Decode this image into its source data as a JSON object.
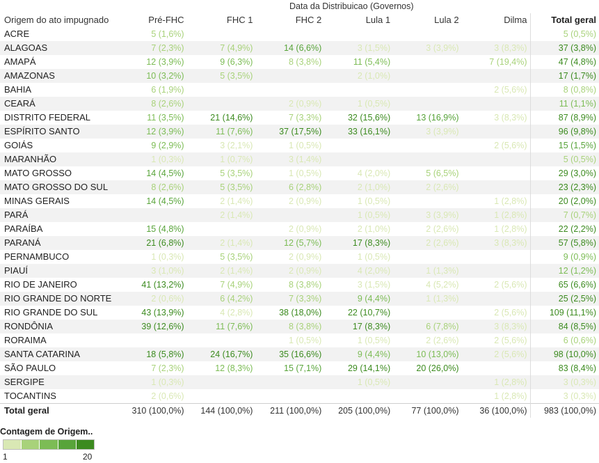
{
  "chart_data": {
    "type": "table",
    "supertitle": "Data da Distribuicao (Governos)",
    "row_header": "Origem do ato impugnado",
    "columns": [
      "Pré-FHC",
      "FHC 1",
      "FHC 2",
      "Lula 1",
      "Lula 2",
      "Dilma",
      "Total geral"
    ],
    "rows": [
      {
        "state": "ACRE",
        "cells": [
          "5 (1,6%)",
          "",
          "",
          "",
          "",
          "",
          "5 (0,5%)"
        ],
        "counts": [
          5,
          null,
          null,
          null,
          null,
          null,
          5
        ]
      },
      {
        "state": "ALAGOAS",
        "cells": [
          "7 (2,3%)",
          "7 (4,9%)",
          "14 (6,6%)",
          "3 (1,5%)",
          "3 (3,9%)",
          "3 (8,3%)",
          "37 (3,8%)"
        ],
        "counts": [
          7,
          7,
          14,
          3,
          3,
          3,
          37
        ]
      },
      {
        "state": "AMAPÁ",
        "cells": [
          "12 (3,9%)",
          "9 (6,3%)",
          "8 (3,8%)",
          "11 (5,4%)",
          "",
          "7 (19,4%)",
          "47 (4,8%)"
        ],
        "counts": [
          12,
          9,
          8,
          11,
          null,
          7,
          47
        ]
      },
      {
        "state": "AMAZONAS",
        "cells": [
          "10 (3,2%)",
          "5 (3,5%)",
          "",
          "2 (1,0%)",
          "",
          "",
          "17 (1,7%)"
        ],
        "counts": [
          10,
          5,
          null,
          2,
          null,
          null,
          17
        ]
      },
      {
        "state": "BAHIA",
        "cells": [
          "6 (1,9%)",
          "",
          "",
          "",
          "",
          "2 (5,6%)",
          "8 (0,8%)"
        ],
        "counts": [
          6,
          null,
          null,
          null,
          null,
          2,
          8
        ]
      },
      {
        "state": "CEARÁ",
        "cells": [
          "8 (2,6%)",
          "",
          "2 (0,9%)",
          "1 (0,5%)",
          "",
          "",
          "11 (1,1%)"
        ],
        "counts": [
          8,
          null,
          2,
          1,
          null,
          null,
          11
        ]
      },
      {
        "state": "DISTRITO FEDERAL",
        "cells": [
          "11 (3,5%)",
          "21 (14,6%)",
          "7 (3,3%)",
          "32 (15,6%)",
          "13 (16,9%)",
          "3 (8,3%)",
          "87 (8,9%)"
        ],
        "counts": [
          11,
          21,
          7,
          32,
          13,
          3,
          87
        ]
      },
      {
        "state": "ESPÍRITO SANTO",
        "cells": [
          "12 (3,9%)",
          "11 (7,6%)",
          "37 (17,5%)",
          "33 (16,1%)",
          "3 (3,9%)",
          "",
          "96 (9,8%)"
        ],
        "counts": [
          12,
          11,
          37,
          33,
          3,
          null,
          96
        ]
      },
      {
        "state": "GOIÁS",
        "cells": [
          "9 (2,9%)",
          "3 (2,1%)",
          "1 (0,5%)",
          "",
          "",
          "2 (5,6%)",
          "15 (1,5%)"
        ],
        "counts": [
          9,
          3,
          1,
          null,
          null,
          2,
          15
        ]
      },
      {
        "state": "MARANHÃO",
        "cells": [
          "1 (0,3%)",
          "1 (0,7%)",
          "3 (1,4%)",
          "",
          "",
          "",
          "5 (0,5%)"
        ],
        "counts": [
          1,
          1,
          3,
          null,
          null,
          null,
          5
        ]
      },
      {
        "state": "MATO GROSSO",
        "cells": [
          "14 (4,5%)",
          "5 (3,5%)",
          "1 (0,5%)",
          "4 (2,0%)",
          "5 (6,5%)",
          "",
          "29 (3,0%)"
        ],
        "counts": [
          14,
          5,
          1,
          4,
          5,
          null,
          29
        ]
      },
      {
        "state": "MATO GROSSO DO SUL",
        "cells": [
          "8 (2,6%)",
          "5 (3,5%)",
          "6 (2,8%)",
          "2 (1,0%)",
          "2 (2,6%)",
          "",
          "23 (2,3%)"
        ],
        "counts": [
          8,
          5,
          6,
          2,
          2,
          null,
          23
        ]
      },
      {
        "state": "MINAS GERAIS",
        "cells": [
          "14 (4,5%)",
          "2 (1,4%)",
          "2 (0,9%)",
          "1 (0,5%)",
          "",
          "1 (2,8%)",
          "20 (2,0%)"
        ],
        "counts": [
          14,
          2,
          2,
          1,
          null,
          1,
          20
        ]
      },
      {
        "state": "PARÁ",
        "cells": [
          "",
          "2 (1,4%)",
          "",
          "1 (0,5%)",
          "3 (3,9%)",
          "1 (2,8%)",
          "7 (0,7%)"
        ],
        "counts": [
          null,
          2,
          null,
          1,
          3,
          1,
          7
        ]
      },
      {
        "state": "PARAÍBA",
        "cells": [
          "15 (4,8%)",
          "",
          "2 (0,9%)",
          "2 (1,0%)",
          "2 (2,6%)",
          "1 (2,8%)",
          "22 (2,2%)"
        ],
        "counts": [
          15,
          null,
          2,
          2,
          2,
          1,
          22
        ]
      },
      {
        "state": "PARANÁ",
        "cells": [
          "21 (6,8%)",
          "2 (1,4%)",
          "12 (5,7%)",
          "17 (8,3%)",
          "2 (2,6%)",
          "3 (8,3%)",
          "57 (5,8%)"
        ],
        "counts": [
          21,
          2,
          12,
          17,
          2,
          3,
          57
        ]
      },
      {
        "state": "PERNAMBUCO",
        "cells": [
          "1 (0,3%)",
          "5 (3,5%)",
          "2 (0,9%)",
          "1 (0,5%)",
          "",
          "",
          "9 (0,9%)"
        ],
        "counts": [
          1,
          5,
          2,
          1,
          null,
          null,
          9
        ]
      },
      {
        "state": "PIAUÍ",
        "cells": [
          "3 (1,0%)",
          "2 (1,4%)",
          "2 (0,9%)",
          "4 (2,0%)",
          "1 (1,3%)",
          "",
          "12 (1,2%)"
        ],
        "counts": [
          3,
          2,
          2,
          4,
          1,
          null,
          12
        ]
      },
      {
        "state": "RIO DE JANEIRO",
        "cells": [
          "41 (13,2%)",
          "7 (4,9%)",
          "8 (3,8%)",
          "3 (1,5%)",
          "4 (5,2%)",
          "2 (5,6%)",
          "65 (6,6%)"
        ],
        "counts": [
          41,
          7,
          8,
          3,
          4,
          2,
          65
        ]
      },
      {
        "state": "RIO GRANDE DO NORTE",
        "cells": [
          "2 (0,6%)",
          "6 (4,2%)",
          "7 (3,3%)",
          "9 (4,4%)",
          "1 (1,3%)",
          "",
          "25 (2,5%)"
        ],
        "counts": [
          2,
          6,
          7,
          9,
          1,
          null,
          25
        ]
      },
      {
        "state": "RIO GRANDE DO SUL",
        "cells": [
          "43 (13,9%)",
          "4 (2,8%)",
          "38 (18,0%)",
          "22 (10,7%)",
          "",
          "2 (5,6%)",
          "109 (11,1%)"
        ],
        "counts": [
          43,
          4,
          38,
          22,
          null,
          2,
          109
        ]
      },
      {
        "state": "RONDÔNIA",
        "cells": [
          "39 (12,6%)",
          "11 (7,6%)",
          "8 (3,8%)",
          "17 (8,3%)",
          "6 (7,8%)",
          "3 (8,3%)",
          "84 (8,5%)"
        ],
        "counts": [
          39,
          11,
          8,
          17,
          6,
          3,
          84
        ]
      },
      {
        "state": "RORAIMA",
        "cells": [
          "",
          "",
          "1 (0,5%)",
          "1 (0,5%)",
          "2 (2,6%)",
          "2 (5,6%)",
          "6 (0,6%)"
        ],
        "counts": [
          null,
          null,
          1,
          1,
          2,
          2,
          6
        ]
      },
      {
        "state": "SANTA CATARINA",
        "cells": [
          "18 (5,8%)",
          "24 (16,7%)",
          "35 (16,6%)",
          "9 (4,4%)",
          "10 (13,0%)",
          "2 (5,6%)",
          "98 (10,0%)"
        ],
        "counts": [
          18,
          24,
          35,
          9,
          10,
          2,
          98
        ]
      },
      {
        "state": "SÃO PAULO",
        "cells": [
          "7 (2,3%)",
          "12 (8,3%)",
          "15 (7,1%)",
          "29 (14,1%)",
          "20 (26,0%)",
          "",
          "83 (8,4%)"
        ],
        "counts": [
          7,
          12,
          15,
          29,
          20,
          null,
          83
        ]
      },
      {
        "state": "SERGIPE",
        "cells": [
          "1 (0,3%)",
          "",
          "",
          "1 (0,5%)",
          "",
          "1 (2,8%)",
          "3 (0,3%)"
        ],
        "counts": [
          1,
          null,
          null,
          1,
          null,
          1,
          3
        ]
      },
      {
        "state": "TOCANTINS",
        "cells": [
          "2 (0,6%)",
          "",
          "",
          "",
          "",
          "1 (2,8%)",
          "3 (0,3%)"
        ],
        "counts": [
          2,
          null,
          null,
          null,
          null,
          1,
          3
        ]
      }
    ],
    "total_row": {
      "state": "Total geral",
      "cells": [
        "310 (100,0%)",
        "144 (100,0%)",
        "211 (100,0%)",
        "205 (100,0%)",
        "77 (100,0%)",
        "36 (100,0%)",
        "983 (100,0%)"
      ]
    },
    "legend": {
      "title": "Contagem de Origem..",
      "min_label": "1",
      "max_label": "20",
      "colors": [
        "#d9e8b4",
        "#a8d27a",
        "#7cbc55",
        "#58a43a",
        "#3c8b1f"
      ]
    }
  }
}
